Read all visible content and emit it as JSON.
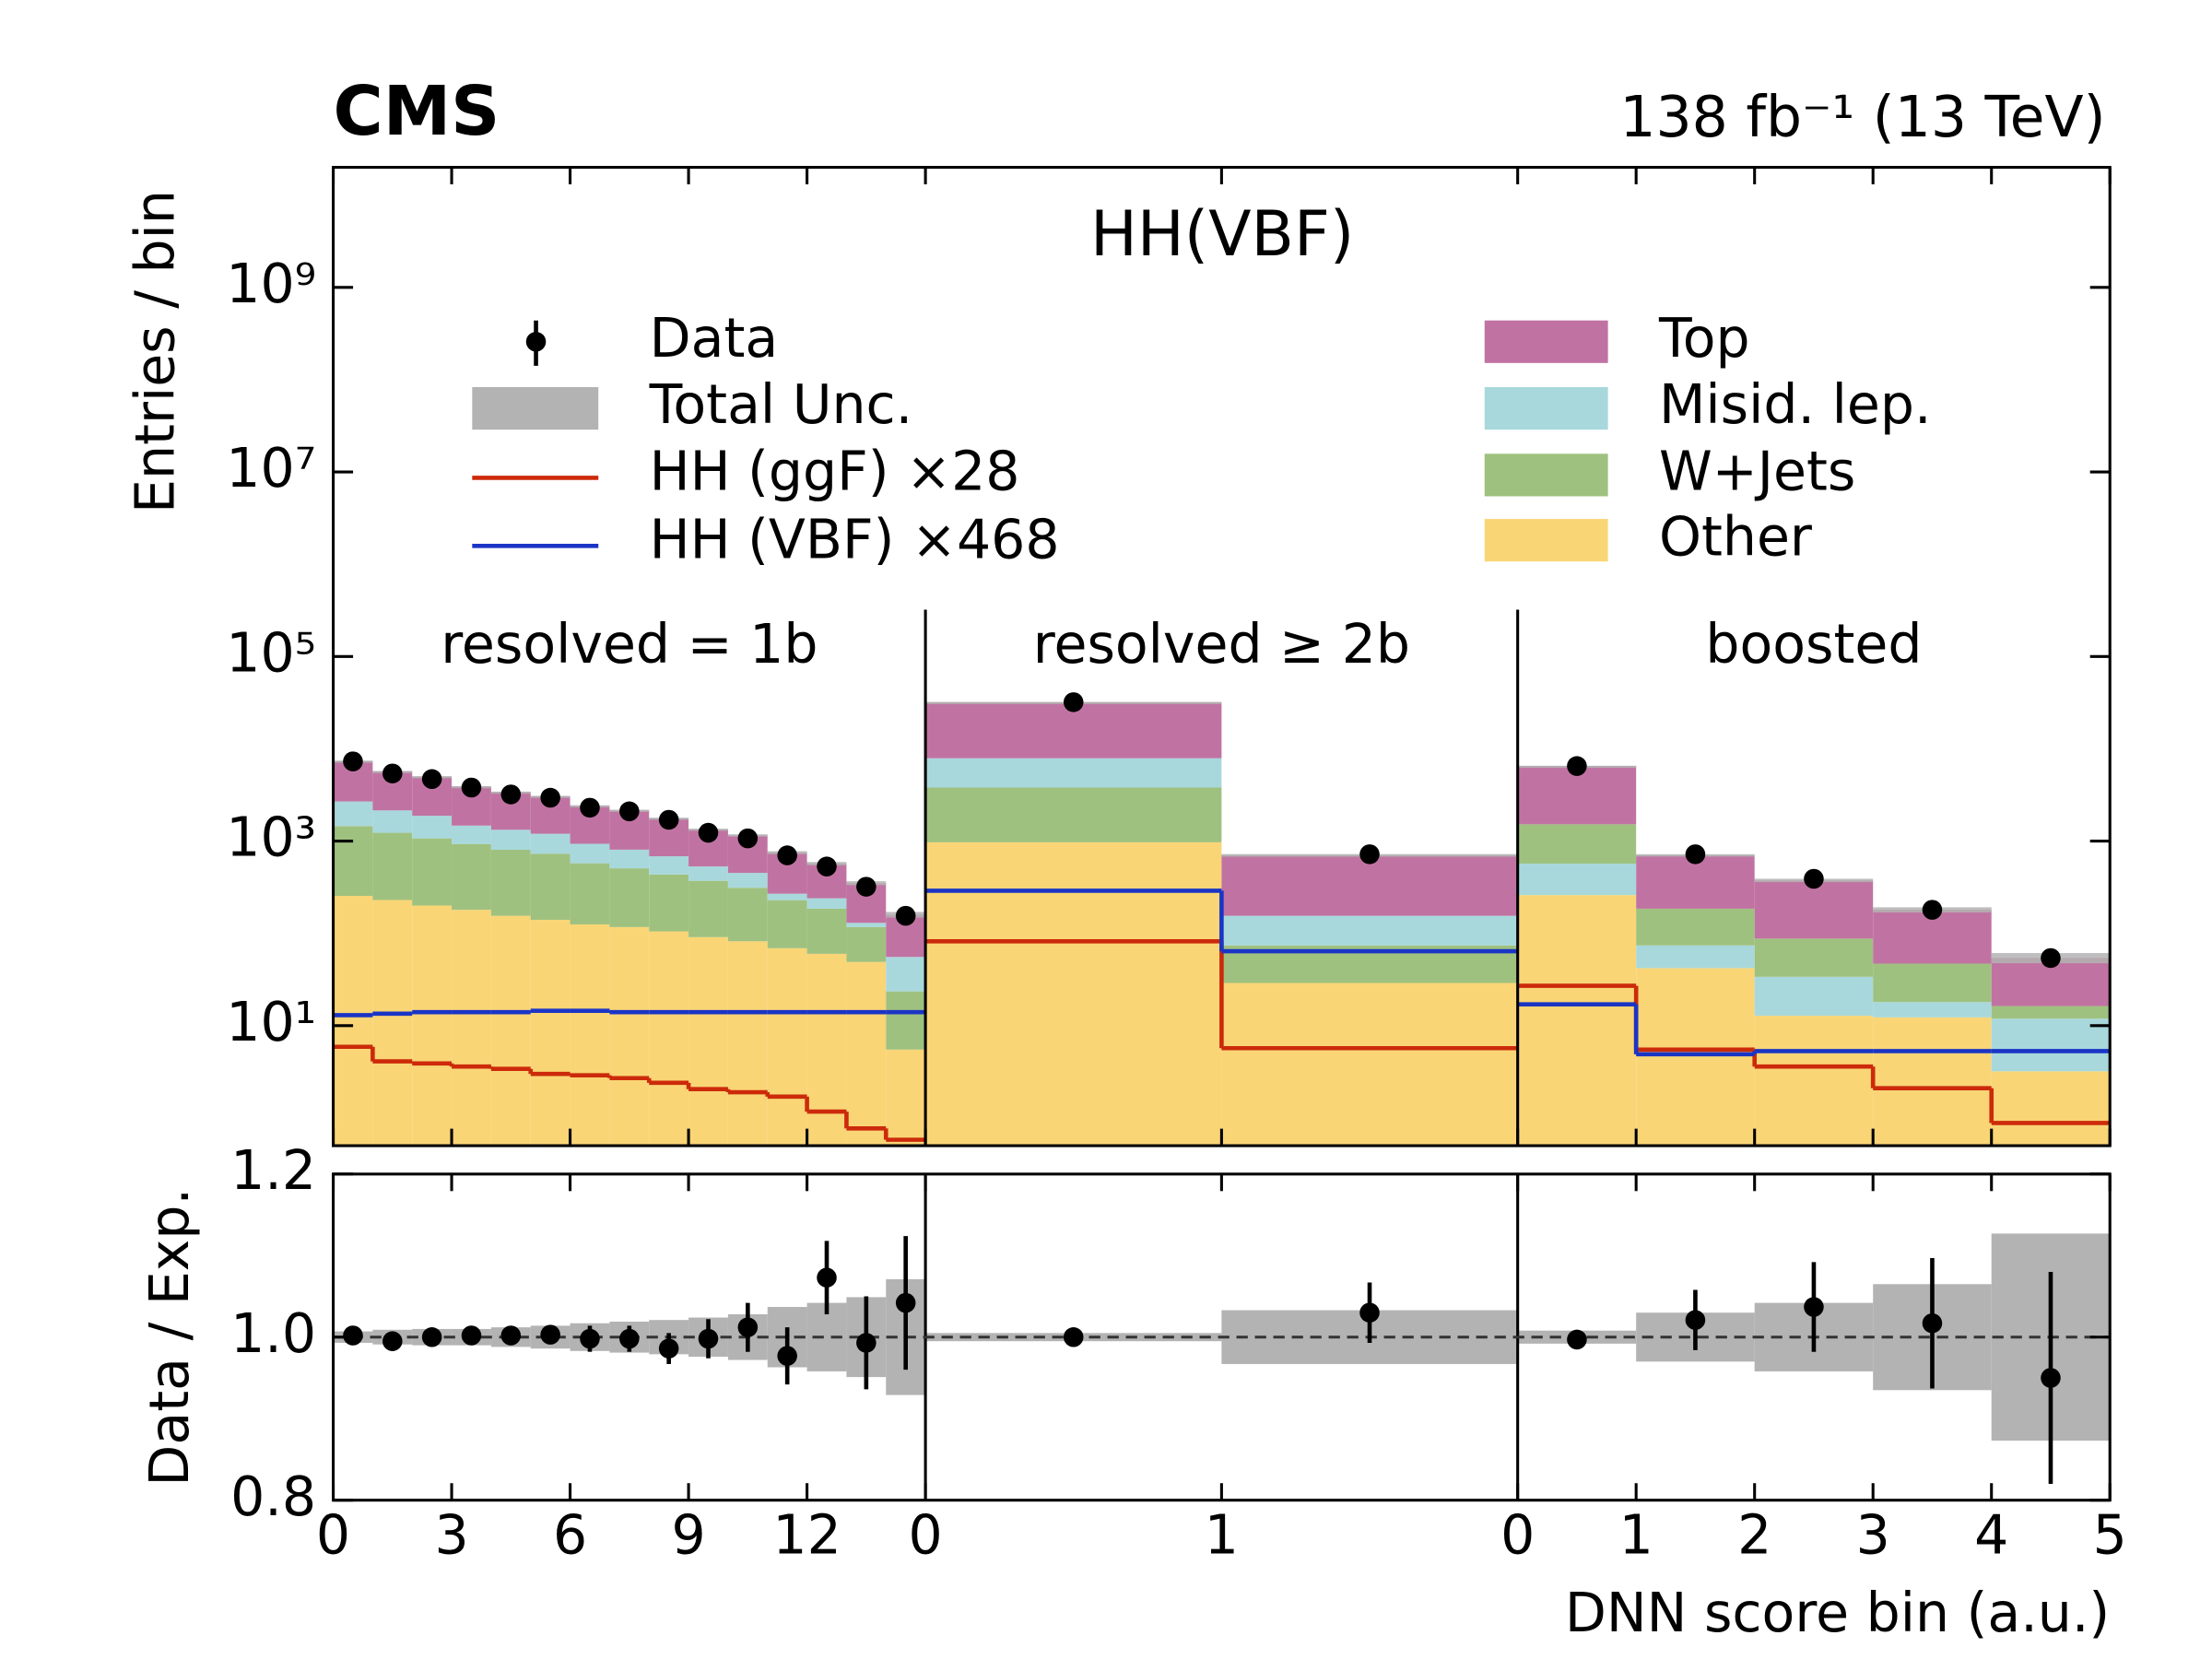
{
  "chart_data": {
    "type": "stacked_step",
    "cms_label": "CMS",
    "lumi_label": "138 fb⁻¹ (13 TeV)",
    "title": "HH(VBF)",
    "y_label": "Entries / bin",
    "ratio_label": "Data / Exp.",
    "x_label": "DNN score bin (a.u.)",
    "ylog": true,
    "ylim": [
      0.5,
      20000000000
    ],
    "yticks": [
      {
        "value": 10,
        "label": "10¹"
      },
      {
        "value": 1000,
        "label": "10³"
      },
      {
        "value": 100000,
        "label": "10⁵"
      },
      {
        "value": 10000000,
        "label": "10⁷"
      },
      {
        "value": 1000000000,
        "label": "10⁹"
      }
    ],
    "ratio_ylim": [
      0.8,
      1.2
    ],
    "ratio_yticks": [
      0.8,
      {
        "value": 1,
        "label": "1.0"
      },
      1.2
    ],
    "data_name": "Data",
    "unc_name": "Total Unc.",
    "unc_color": "#b3b3b3",
    "stack": [
      {
        "name": "Other",
        "color": "#f9d576"
      },
      {
        "name": "W+Jets",
        "color": "#9fc17f"
      },
      {
        "name": "Misid. lep.",
        "color": "#a8d8dc"
      },
      {
        "name": "Top",
        "color": "#c073a2"
      }
    ],
    "signals": [
      {
        "name": "HH (ggF) ×28",
        "color": "#cc2a0a"
      },
      {
        "name": "HH (VBF) ×468",
        "color": "#1a35c5"
      }
    ],
    "regions": [
      {
        "label": "resolved = 1b",
        "xlim": [
          0,
          15
        ],
        "xticks": [
          0,
          3,
          6,
          9,
          12
        ],
        "stack_order": [
          0,
          1,
          2,
          3
        ],
        "stack_values": [
          [
            255,
            230,
            200,
            180,
            155,
            140,
            125,
            117,
            105,
            91,
            82,
            69,
            60,
            49,
            5.5
          ],
          [
            1200,
            1000,
            870,
            750,
            650,
            590,
            450,
            390,
            330,
            280,
            230,
            160,
            125,
            68,
            18
          ],
          [
            1230,
            920,
            810,
            540,
            520,
            470,
            360,
            300,
            250,
            160,
            140,
            40,
            55,
            13,
            32
          ],
          [
            4700,
            3550,
            3120,
            2430,
            2070,
            1850,
            1470,
            1340,
            1070,
            800,
            700,
            480,
            330,
            220,
            104
          ]
        ],
        "signal_values": [
          [
            5.9,
            4.1,
            3.9,
            3.6,
            3.4,
            3.0,
            2.9,
            2.7,
            2.4,
            2.05,
            1.9,
            1.7,
            1.17,
            0.77,
            0.58
          ],
          [
            13,
            13.5,
            14,
            14,
            14,
            14.5,
            14.5,
            14,
            14,
            14,
            14,
            14,
            14,
            14,
            14
          ]
        ],
        "data": [
          7300,
          5400,
          4700,
          3800,
          3200,
          2950,
          2300,
          2100,
          1700,
          1230,
          1070,
          700,
          530,
          320,
          155
        ],
        "ratio": [
          1.002,
          0.995,
          1.0,
          1.002,
          1.002,
          1.003,
          0.998,
          0.998,
          0.986,
          0.998,
          1.012,
          0.977,
          1.073,
          0.993,
          1.042
        ],
        "ratio_errors": [
          0.005,
          0.007,
          0.007,
          0.009,
          0.009,
          0.01,
          0.016,
          0.016,
          0.019,
          0.024,
          0.03,
          0.035,
          0.045,
          0.057,
          0.082
        ],
        "band": [
          0.007,
          0.009,
          0.01,
          0.01,
          0.012,
          0.014,
          0.017,
          0.019,
          0.021,
          0.024,
          0.028,
          0.037,
          0.042,
          0.049,
          0.071
        ]
      },
      {
        "label": "resolved ≥ 2b",
        "xlim": [
          0,
          2
        ],
        "xticks": [
          0,
          1
        ],
        "stack_order": [
          0,
          1,
          2,
          3
        ],
        "stack_values": [
          [
            970,
            29
          ],
          [
            2830,
            45
          ],
          [
            4100,
            81
          ],
          [
            24100,
            545
          ]
        ],
        "signal_values": [
          [
            82,
            5.7
          ],
          [
            290,
            64
          ]
        ],
        "data": [
          32000,
          720
        ],
        "ratio": [
          1.0,
          1.03
        ],
        "ratio_errors": [
          0.003,
          0.037
        ],
        "band": [
          0.005,
          0.033
        ]
      },
      {
        "label": "boosted",
        "xlim": [
          0,
          5
        ],
        "xticks": [
          0,
          1,
          2,
          3,
          4,
          5
        ],
        "stack_order": [
          0,
          2,
          1,
          3
        ],
        "stack_values": [
          [
            260,
            42,
            12.8,
            12.3,
            3.2
          ],
          [
            950,
            111,
            54,
            29,
            4.4
          ],
          [
            310,
            32,
            21,
            5.7,
            8.7
          ],
          [
            4980,
            515,
            287,
            133,
            38
          ]
        ],
        "signal_values": [
          [
            27,
            5.5,
            3.6,
            2.1,
            0.88
          ],
          [
            17,
            4.9,
            5.3,
            5.3,
            5.3
          ]
        ],
        "data": [
          6500,
          720,
          390,
          180,
          54
        ],
        "ratio": [
          0.997,
          1.021,
          1.037,
          1.017,
          0.95
        ],
        "ratio_errors": [
          0.005,
          0.037,
          0.055,
          0.08,
          0.13
        ],
        "band": [
          0.008,
          0.03,
          0.042,
          0.065,
          0.127
        ]
      }
    ]
  }
}
